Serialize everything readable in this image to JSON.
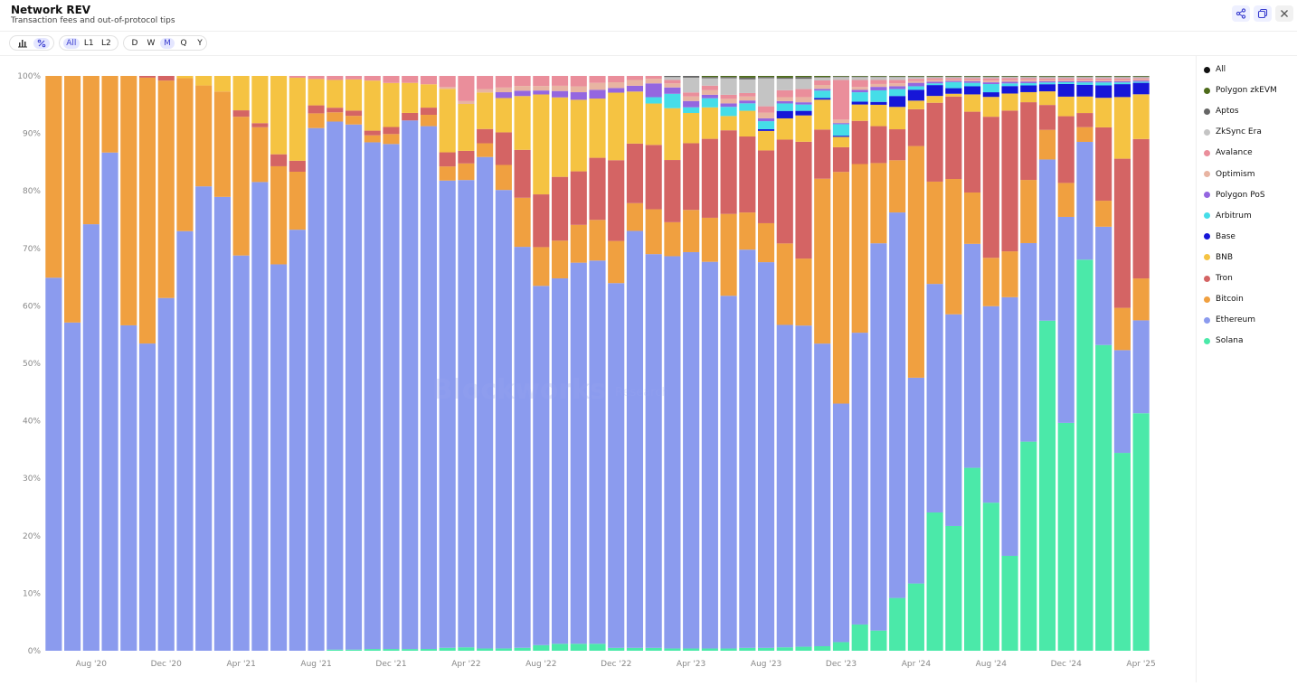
{
  "header": {
    "title": "Network REV",
    "subtitle": "Transaction fees and out-of-protocol tips"
  },
  "toolbar": {
    "chart_type_icons": [
      "bar-chart-icon",
      "percent-icon"
    ],
    "scope_buttons": [
      {
        "label": "All",
        "active": true
      },
      {
        "label": "L1",
        "active": false
      },
      {
        "label": "L2",
        "active": false
      }
    ],
    "period_buttons": [
      {
        "label": "D",
        "active": false
      },
      {
        "label": "W",
        "active": false
      },
      {
        "label": "M",
        "active": true
      },
      {
        "label": "Q",
        "active": false
      },
      {
        "label": "Y",
        "active": false
      }
    ]
  },
  "header_actions": [
    "share-icon",
    "copy-icon",
    "close-icon"
  ],
  "watermark": {
    "brand": "Blockworks",
    "tag": "Research"
  },
  "legend": [
    {
      "label": "All",
      "color": "#111111"
    },
    {
      "label": "Polygon zkEVM",
      "color": "#4d6b1a"
    },
    {
      "label": "Aptos",
      "color": "#666666"
    },
    {
      "label": "ZkSync Era",
      "color": "#c4c4c4"
    },
    {
      "label": "Avalance",
      "color": "#ea8e9b"
    },
    {
      "label": "Optimism",
      "color": "#e8b4a2"
    },
    {
      "label": "Polygon PoS",
      "color": "#9466e0"
    },
    {
      "label": "Arbitrum",
      "color": "#45dde8"
    },
    {
      "label": "Base",
      "color": "#1616d8"
    },
    {
      "label": "BNB",
      "color": "#f5c342"
    },
    {
      "label": "Tron",
      "color": "#d46464"
    },
    {
      "label": "Bitcoin",
      "color": "#f0a040"
    },
    {
      "label": "Ethereum",
      "color": "#8b9bee"
    },
    {
      "label": "Solana",
      "color": "#4be9a9"
    }
  ],
  "chart_data": {
    "type": "bar",
    "stacked": true,
    "normalized": true,
    "y_unit": "%",
    "ylim": [
      0,
      100
    ],
    "y_ticks": [
      "0%",
      "10%",
      "20%",
      "30%",
      "40%",
      "50%",
      "60%",
      "70%",
      "80%",
      "90%",
      "100%"
    ],
    "x_ticks": [
      "Aug '20",
      "Dec '20",
      "Apr '21",
      "Aug '21",
      "Dec '21",
      "Apr '22",
      "Aug '22",
      "Dec '22",
      "Apr '23",
      "Aug '23",
      "Dec '23",
      "Apr '24",
      "Aug '24",
      "Dec '24",
      "Apr '25"
    ],
    "x_tick_index": [
      2,
      6,
      10,
      14,
      18,
      22,
      26,
      30,
      34,
      38,
      42,
      46,
      50,
      54,
      58
    ],
    "categories": [
      "Jun '20",
      "Jul '20",
      "Aug '20",
      "Sep '20",
      "Oct '20",
      "Nov '20",
      "Dec '20",
      "Jan '21",
      "Feb '21",
      "Mar '21",
      "Apr '21",
      "May '21",
      "Jun '21",
      "Jul '21",
      "Aug '21",
      "Sep '21",
      "Oct '21",
      "Nov '21",
      "Dec '21",
      "Jan '22",
      "Feb '22",
      "Mar '22",
      "Apr '22",
      "May '22",
      "Jun '22",
      "Jul '22",
      "Aug '22",
      "Sep '22",
      "Oct '22",
      "Nov '22",
      "Dec '22",
      "Jan '23",
      "Feb '23",
      "Mar '23",
      "Apr '23",
      "May '23",
      "Jun '23",
      "Jul '23",
      "Aug '23",
      "Sep '23",
      "Oct '23",
      "Nov '23",
      "Dec '23",
      "Jan '24",
      "Feb '24",
      "Mar '24",
      "Apr '24",
      "May '24",
      "Jun '24",
      "Jul '24",
      "Aug '24",
      "Sep '24",
      "Oct '24",
      "Nov '24",
      "Dec '24",
      "Jan '25",
      "Feb '25",
      "Mar '25",
      "Apr '25"
    ],
    "stack_order": [
      "Solana",
      "Ethereum",
      "Bitcoin",
      "Tron",
      "BNB",
      "Base",
      "Arbitrum",
      "Polygon PoS",
      "Optimism",
      "Avalance",
      "ZkSync Era",
      "Aptos",
      "Polygon zkEVM"
    ],
    "series": [
      {
        "name": "Solana",
        "values": [
          0,
          0,
          0,
          0,
          0,
          0,
          0,
          0,
          0,
          0,
          0,
          0,
          0,
          0,
          0,
          0.2,
          0.2,
          0.3,
          0.3,
          0.3,
          0.3,
          0.5,
          0.6,
          0.4,
          0.4,
          0.5,
          1,
          1.2,
          1.2,
          1.2,
          0.5,
          0.5,
          0.5,
          0.4,
          0.4,
          0.4,
          0.4,
          0.5,
          0.5,
          0.6,
          0.7,
          0.8,
          1.5,
          4.5,
          3.5,
          9.2,
          11.7,
          24.2,
          22.4,
          31.7,
          25.4,
          17.8,
          37.4,
          55.7,
          39.6,
          66.4,
          51.7,
          33.7,
          41.4
        ]
      },
      {
        "name": "Ethereum",
        "values": [
          64.9,
          57.1,
          74.2,
          86.5,
          56.5,
          53.5,
          61,
          73,
          77.8,
          75.8,
          67.8,
          80.4,
          64.6,
          69,
          85.2,
          91.4,
          90.8,
          87,
          86,
          91.4,
          87.4,
          79.5,
          81.7,
          86.1,
          78.8,
          67.8,
          64,
          63,
          65.5,
          66,
          63.2,
          72.1,
          68.5,
          68.1,
          69.5,
          67.6,
          61.6,
          69.7,
          67.3,
          56.2,
          56.1,
          53.6,
          41.5,
          50,
          67.1,
          67.2,
          35.8,
          40,
          38,
          38.8,
          33.7,
          48.5,
          35.5,
          27.2,
          35.8,
          20,
          20,
          17.5,
          16.2
        ]
      },
      {
        "name": "Bitcoin",
        "values": [
          35.1,
          42.9,
          25.8,
          13.3,
          43.3,
          46.3,
          37.6,
          26.6,
          16.9,
          17.6,
          23.8,
          9.4,
          16.4,
          9.5,
          2.4,
          1.6,
          1.5,
          1.2,
          1.7,
          0,
          1.9,
          2.4,
          2.9,
          2.4,
          4.3,
          8.3,
          6.9,
          6.5,
          6.5,
          7,
          7.3,
          4.8,
          7.8,
          5.9,
          7.4,
          7.7,
          14.3,
          6.5,
          6.8,
          14.2,
          11.7,
          29.2,
          40.3,
          28.9,
          13.9,
          9.1,
          40.3,
          17.9,
          24.3,
          8.9,
          8.3,
          8.6,
          11.3,
          5,
          5.9,
          2.5,
          4.4,
          7.2,
          7.3
        ]
      },
      {
        "name": "Tron",
        "values": [
          0,
          0,
          0,
          0,
          0,
          0.3,
          0.8,
          0,
          0,
          0,
          1.1,
          0.7,
          2,
          1.8,
          1.3,
          0.8,
          0.9,
          0.8,
          1.2,
          1.3,
          1.2,
          2.4,
          2.2,
          2.5,
          5.6,
          8.1,
          9.4,
          11,
          9.2,
          10.7,
          14,
          10.3,
          11.2,
          10.8,
          11.7,
          13.8,
          14.6,
          13.3,
          12.7,
          18.1,
          20.4,
          8.7,
          4.3,
          7.4,
          6.4,
          5.4,
          6.4,
          13.8,
          14.8,
          14,
          24.2,
          26.4,
          13.9,
          4.2,
          11.6,
          2.4,
          12.4,
          25.4,
          24.3
        ]
      },
      {
        "name": "BNB",
        "values": [
          0,
          0,
          0,
          0,
          0,
          0,
          0,
          0.4,
          1.6,
          2.6,
          5.9,
          8.1,
          13.1,
          13.6,
          4.3,
          4.8,
          5.4,
          8.6,
          7.5,
          5.2,
          3.9,
          10.8,
          8.2,
          6.4,
          5.9,
          9.1,
          17.8,
          13.7,
          12.3,
          10.2,
          11.7,
          9,
          7.2,
          9,
          5.3,
          5.5,
          2.5,
          4.5,
          3.4,
          3.7,
          4.6,
          5.3,
          1.8,
          2.8,
          3.7,
          3.9,
          1.5,
          1.2,
          0.5,
          3,
          3.4,
          3.2,
          1.8,
          2.3,
          3.4,
          2.8,
          5,
          10.5,
          7.8
        ]
      },
      {
        "name": "Base",
        "values": [
          0,
          0,
          0,
          0,
          0,
          0,
          0,
          0,
          0,
          0,
          0,
          0,
          0,
          0,
          0,
          0,
          0,
          0,
          0,
          0,
          0,
          0,
          0,
          0,
          0,
          0,
          0,
          0,
          0,
          0,
          0,
          0,
          0,
          0,
          0,
          0,
          0,
          0,
          0.3,
          1.3,
          0.8,
          0.3,
          0.2,
          0.5,
          0.5,
          1.9,
          1.9,
          1.9,
          1,
          1.4,
          0.8,
          1.4,
          1.2,
          1.2,
          2.2,
          2,
          2.1,
          2.2,
          2
        ]
      },
      {
        "name": "Arbitrum",
        "values": [
          0,
          0,
          0,
          0,
          0,
          0,
          0,
          0,
          0,
          0,
          0,
          0,
          0,
          0,
          0,
          0,
          0,
          0,
          0,
          0,
          0,
          0,
          0,
          0,
          0,
          0,
          0,
          0,
          0,
          0,
          0,
          0,
          1.1,
          2.5,
          1,
          1.6,
          1.6,
          1.3,
          1.4,
          1.3,
          1.1,
          1.3,
          2,
          1.6,
          2,
          1.2,
          0.6,
          0.3,
          1.1,
          0.6,
          1.4,
          0.5,
          0.4,
          0.3,
          0.3,
          0.4,
          0.5,
          0.3,
          0.2
        ]
      },
      {
        "name": "Polygon PoS",
        "values": [
          0,
          0,
          0,
          0,
          0,
          0,
          0,
          0,
          0,
          0,
          0,
          0,
          0,
          0,
          0,
          0,
          0,
          0,
          0,
          0,
          0,
          0,
          0,
          0,
          1,
          0.9,
          0.7,
          1.1,
          1.3,
          1.5,
          0.8,
          1,
          2.4,
          1.1,
          1.1,
          0.6,
          0.6,
          0.5,
          0.5,
          0.4,
          0.4,
          0.3,
          0.2,
          0.4,
          0.6,
          0.5,
          0.6,
          0.3,
          0.2,
          0.3,
          0.3,
          0.3,
          0.3,
          0.2,
          0.2,
          0.2,
          0.2,
          0.2,
          0.2
        ]
      },
      {
        "name": "Optimism",
        "values": [
          0,
          0,
          0,
          0,
          0,
          0,
          0,
          0,
          0,
          0,
          0,
          0,
          0,
          0,
          0,
          0,
          0,
          0,
          0,
          0,
          0,
          0.3,
          0.5,
          0.6,
          0.8,
          0.8,
          0.8,
          0.9,
          1,
          1.2,
          1,
          1,
          0.8,
          0.7,
          0.8,
          0.8,
          0.8,
          0.7,
          1,
          0.7,
          0.9,
          0.7,
          0.6,
          0.5,
          0.5,
          0.5,
          0.3,
          0.3,
          0.2,
          0.2,
          0.3,
          0.3,
          0.3,
          0.2,
          0.2,
          0.2,
          0.2,
          0.2,
          0.2
        ]
      },
      {
        "name": "Avalance",
        "values": [
          0,
          0,
          0,
          0,
          0,
          0,
          0,
          0,
          0,
          0,
          0,
          0,
          0,
          0.3,
          0.5,
          0.7,
          0.6,
          0.8,
          1.2,
          1.2,
          1.4,
          1.9,
          4.4,
          2.3,
          2,
          1.7,
          1.8,
          1.7,
          1.8,
          1.2,
          1.1,
          0.7,
          0.5,
          0.6,
          0.7,
          0.8,
          0.7,
          0.6,
          1.1,
          1.2,
          1.4,
          0.8,
          6.9,
          1.2,
          0.7,
          0.6,
          0.4,
          0.3,
          0.3,
          0.3,
          0.4,
          0.4,
          0.3,
          0.3,
          0.3,
          0.3,
          0.3,
          0.3,
          0.2
        ]
      },
      {
        "name": "ZkSync Era",
        "values": [
          0,
          0,
          0,
          0,
          0,
          0,
          0,
          0,
          0,
          0,
          0,
          0,
          0,
          0,
          0,
          0,
          0,
          0,
          0,
          0,
          0,
          0,
          0,
          0,
          0,
          0,
          0,
          0,
          0,
          0,
          0,
          0,
          0,
          0.5,
          2.6,
          1.3,
          2.9,
          2.4,
          4.9,
          2,
          1.8,
          0.5,
          0.5,
          0.5,
          0.5,
          0.5,
          0.3,
          0.2,
          0.2,
          0.2,
          0.2,
          0.2,
          0.2,
          0.2,
          0.2,
          0.2,
          0.2,
          0.2,
          0.2
        ]
      },
      {
        "name": "Aptos",
        "values": [
          0,
          0,
          0,
          0,
          0,
          0,
          0,
          0,
          0,
          0,
          0,
          0,
          0,
          0,
          0,
          0,
          0,
          0,
          0,
          0,
          0,
          0,
          0,
          0,
          0,
          0,
          0,
          0,
          0,
          0,
          0,
          0,
          0,
          0.2,
          0.3,
          0.2,
          0.2,
          0.3,
          0.2,
          0.2,
          0.3,
          0.1,
          0.1,
          0.1,
          0.1,
          0.1,
          0.1,
          0.1,
          0.1,
          0.1,
          0.1,
          0.1,
          0.1,
          0.1,
          0.1,
          0.1,
          0.1,
          0.1,
          0.1
        ]
      },
      {
        "name": "Polygon zkEVM",
        "values": [
          0,
          0,
          0,
          0,
          0,
          0,
          0,
          0,
          0,
          0,
          0,
          0,
          0,
          0,
          0,
          0,
          0,
          0,
          0,
          0,
          0,
          0,
          0,
          0,
          0,
          0,
          0,
          0,
          0,
          0,
          0,
          0,
          0,
          0,
          0,
          0.2,
          0.2,
          0.3,
          0.2,
          0.3,
          0.2,
          0.2,
          0.1,
          0.1,
          0.1,
          0.1,
          0.1,
          0.1,
          0.1,
          0.1,
          0.1,
          0.1,
          0.1,
          0.1,
          0.1,
          0.1,
          0.1,
          0.1,
          0.1
        ]
      }
    ]
  }
}
